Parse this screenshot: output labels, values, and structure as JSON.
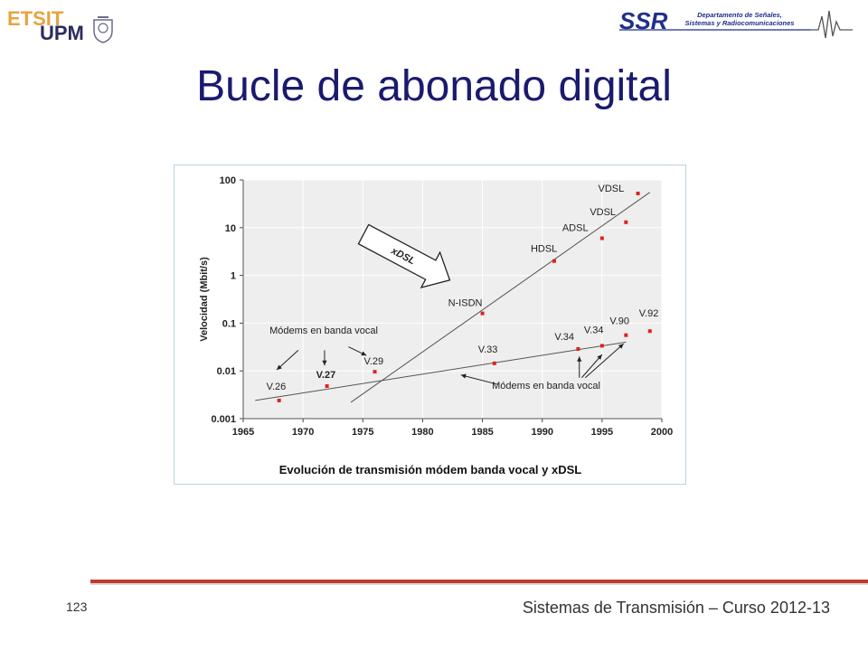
{
  "header": {
    "logo_left_text_1": "ETSIT",
    "logo_left_text_2": "UPM",
    "logo_right_ssr": "SSR",
    "logo_right_dept_line1": "Departamento de Señales,",
    "logo_right_dept_line2": "Sistemas y Radiocomunicaciones"
  },
  "slide": {
    "title": "Bucle de abonado digital"
  },
  "footer": {
    "page_number": "123",
    "course": "Sistemas de Transmisión – Curso 2012-13"
  },
  "colors": {
    "title": "#1a1a6e",
    "footer_bar": "#c0392b",
    "point": "#e02020",
    "plot_bg": "#eeeeee",
    "frame_border": "#b9d3e0"
  },
  "chart_data": {
    "type": "scatter",
    "title": "Evolución de transmisión módem banda vocal y xDSL",
    "xlabel": "",
    "ylabel": "Velocidad (Mbit/s)",
    "xlim": [
      1965,
      2000
    ],
    "ylim": [
      0.001,
      100
    ],
    "y_scale": "log",
    "grid": true,
    "x_ticks": [
      "1965",
      "1970",
      "1975",
      "1980",
      "1985",
      "1990",
      "1995",
      "2000"
    ],
    "y_ticks": [
      {
        "value": 0.001,
        "label": "0.001"
      },
      {
        "value": 0.01,
        "label": "0.01"
      },
      {
        "value": 0.1,
        "label": "0.1"
      },
      {
        "value": 1,
        "label": "1"
      },
      {
        "value": 10,
        "label": "10"
      },
      {
        "value": 100,
        "label": "100"
      }
    ],
    "points": [
      {
        "label": "V.26",
        "x": 1968,
        "y": 0.0024
      },
      {
        "label": "V.27",
        "x": 1972,
        "y": 0.0048
      },
      {
        "label": "V.29",
        "x": 1976,
        "y": 0.0096
      },
      {
        "label": "V.33",
        "x": 1986,
        "y": 0.0144
      },
      {
        "label": "V.34",
        "x": 1993,
        "y": 0.0288
      },
      {
        "label": "V.34",
        "x": 1995,
        "y": 0.0336
      },
      {
        "label": "V.90",
        "x": 1997,
        "y": 0.056
      },
      {
        "label": "V.92",
        "x": 1999,
        "y": 0.068
      },
      {
        "label": "N-ISDN",
        "x": 1985,
        "y": 0.16
      },
      {
        "label": "HDSL",
        "x": 1991,
        "y": 2.0
      },
      {
        "label": "ADSL",
        "x": 1995,
        "y": 6.0
      },
      {
        "label": "VDSL",
        "x": 1997,
        "y": 13
      },
      {
        "label": "VDSL",
        "x": 1998,
        "y": 52
      }
    ],
    "trend_lines": [
      {
        "from": {
          "x": 1966,
          "y": 0.0024
        },
        "to": {
          "x": 1997,
          "y": 0.04
        }
      },
      {
        "from": {
          "x": 1974,
          "y": 0.0022
        },
        "to": {
          "x": 1999,
          "y": 55
        }
      }
    ],
    "annotations": {
      "xdsl": "xDSL",
      "modems_top": "Módems en banda vocal",
      "modems_bottom": "Módems en banda vocal"
    }
  }
}
